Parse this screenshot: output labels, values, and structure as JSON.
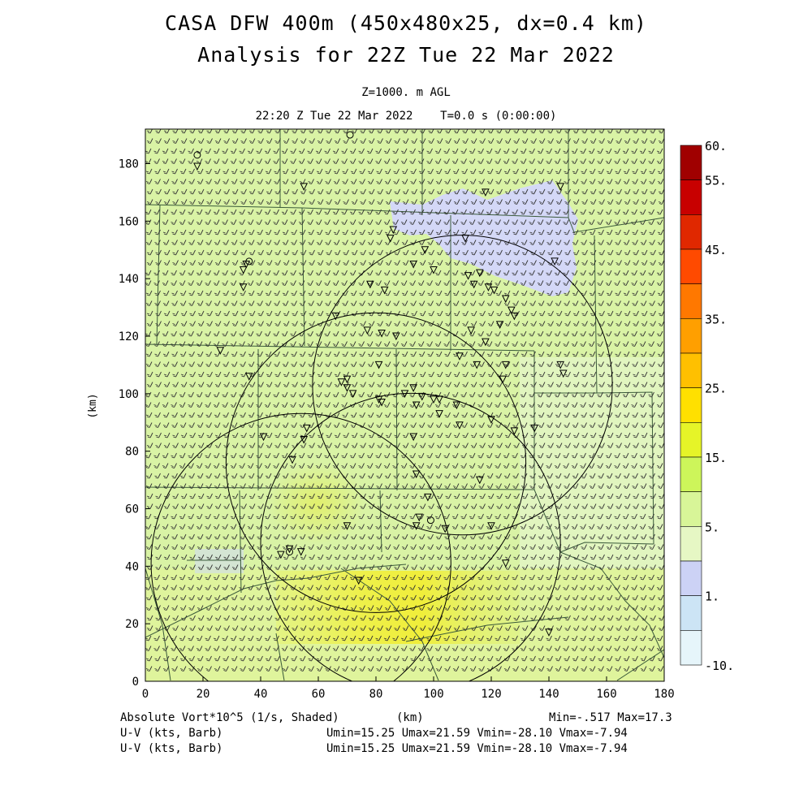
{
  "header": {
    "title_line1": "CASA DFW 400m (450x480x25, dx=0.4 km)",
    "title_line2": "Analysis for 22Z Tue 22 Mar 2022",
    "level": "Z=1000. m AGL",
    "time": "22:20 Z Tue 22 Mar 2022    T=0.0 s (0:00:00)"
  },
  "axes": {
    "xlabel": "(km)",
    "ylabel": "(km)",
    "x_ticks": [
      0,
      20,
      40,
      60,
      80,
      100,
      120,
      140,
      160,
      180
    ],
    "y_ticks": [
      0,
      20,
      40,
      60,
      80,
      100,
      120,
      140,
      160,
      180
    ],
    "xlim": [
      0,
      180
    ],
    "ylim": [
      0,
      192
    ]
  },
  "colorbar": {
    "labels": [
      "60.",
      "55.",
      "45.",
      "35.",
      "25.",
      "15.",
      "5.",
      "1.",
      "-10."
    ],
    "colors": [
      "#a00000",
      "#c80000",
      "#e02800",
      "#ff4a00",
      "#ff7800",
      "#ff9f00",
      "#ffc000",
      "#ffe000",
      "#e6f428",
      "#cdf55a",
      "#d8f598",
      "#e6f7c4",
      "#ccd2f5",
      "#cce4f5",
      "#e6f5fa"
    ]
  },
  "footer": {
    "field": "Absolute Vort*10^5 (1/s, Shaded)",
    "unit": "(km)",
    "minmax": "Min=-.517 Max=17.3",
    "vec1_label": "U-V (kts, Barb)",
    "vec1_stats": "Umin=15.25 Umax=21.59 Vmin=-28.10 Vmax=-7.94",
    "vec2_label": "U-V (kts, Barb)",
    "vec2_stats": "Umin=15.25 Umax=21.59 Vmin=-28.10 Vmax=-7.94"
  },
  "map_data": {
    "radar_rings_km": [
      {
        "center": [
          110,
          103
        ],
        "radius": 52
      },
      {
        "center": [
          80,
          76
        ],
        "radius": 52
      },
      {
        "center": [
          92,
          48
        ],
        "radius": 52
      },
      {
        "center": [
          54,
          41
        ],
        "radius": 52
      }
    ],
    "station_markers_km": [
      [
        18,
        179
      ],
      [
        55,
        172
      ],
      [
        34,
        143
      ],
      [
        34,
        137
      ],
      [
        35,
        145
      ],
      [
        78,
        138
      ],
      [
        83,
        136
      ],
      [
        85,
        154
      ],
      [
        93,
        145
      ],
      [
        97,
        150
      ],
      [
        100,
        143
      ],
      [
        111,
        154
      ],
      [
        112,
        141
      ],
      [
        114,
        138
      ],
      [
        116,
        142
      ],
      [
        119,
        137
      ],
      [
        121,
        136
      ],
      [
        125,
        133
      ],
      [
        127,
        129
      ],
      [
        128,
        127
      ],
      [
        123,
        124
      ],
      [
        113,
        122
      ],
      [
        118,
        118
      ],
      [
        66,
        127
      ],
      [
        77,
        122
      ],
      [
        82,
        121
      ],
      [
        87,
        120
      ],
      [
        81,
        110
      ],
      [
        68,
        104
      ],
      [
        70,
        102
      ],
      [
        72,
        100
      ],
      [
        82,
        97
      ],
      [
        81,
        98
      ],
      [
        90,
        100
      ],
      [
        93,
        102
      ],
      [
        96,
        99
      ],
      [
        94,
        96
      ],
      [
        102,
        93
      ],
      [
        100,
        98
      ],
      [
        108,
        96
      ],
      [
        102,
        98
      ],
      [
        109,
        89
      ],
      [
        120,
        91
      ],
      [
        128,
        87
      ],
      [
        145,
        107
      ],
      [
        144,
        110
      ],
      [
        125,
        110
      ],
      [
        115,
        110
      ],
      [
        109,
        113
      ],
      [
        124,
        105
      ],
      [
        93,
        85
      ],
      [
        94,
        72
      ],
      [
        98,
        64
      ],
      [
        95,
        57
      ],
      [
        94,
        54
      ],
      [
        104,
        53
      ],
      [
        116,
        70
      ],
      [
        120,
        54
      ],
      [
        125,
        41
      ],
      [
        70,
        54
      ],
      [
        51,
        77
      ],
      [
        55,
        84
      ],
      [
        56,
        88
      ],
      [
        41,
        85
      ],
      [
        47,
        44
      ],
      [
        50,
        46
      ],
      [
        54,
        45
      ],
      [
        74,
        35
      ],
      [
        140,
        17
      ],
      [
        26,
        115
      ],
      [
        36,
        106
      ],
      [
        70,
        105
      ],
      [
        86,
        157
      ],
      [
        135,
        88
      ],
      [
        142,
        146
      ],
      [
        144,
        172
      ],
      [
        118,
        170
      ]
    ],
    "station_circles_km": [
      [
        18,
        183
      ],
      [
        36,
        146
      ],
      [
        71,
        190
      ],
      [
        99,
        56
      ],
      [
        50,
        45
      ]
    ]
  }
}
